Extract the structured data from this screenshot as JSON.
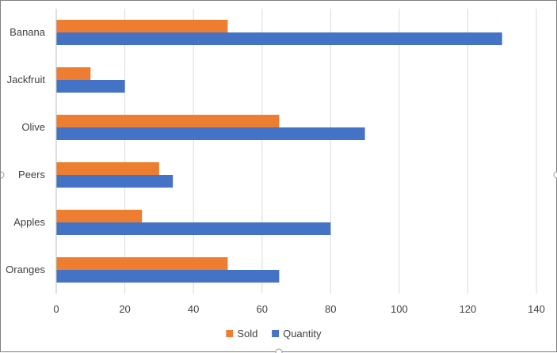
{
  "chart_data": {
    "type": "bar",
    "orientation": "horizontal",
    "title": "",
    "xlabel": "",
    "ylabel": "",
    "categories": [
      "Banana",
      "Jackfruit",
      "Olive",
      "Peers",
      "Apples",
      "Oranges"
    ],
    "series": [
      {
        "name": "Sold",
        "color": "#ED7D31",
        "values": [
          50,
          10,
          65,
          30,
          25,
          50
        ]
      },
      {
        "name": "Quantity",
        "color": "#4472C4",
        "values": [
          130,
          20,
          90,
          34,
          80,
          65
        ]
      }
    ],
    "xlim": [
      0,
      140
    ],
    "xticks": [
      0,
      20,
      40,
      60,
      80,
      100,
      120,
      140
    ],
    "grid": true,
    "legend": "bottom-center",
    "colors": {
      "grid": "#d9d9d9",
      "axis": "#bfbfbf",
      "text": "#404040"
    }
  }
}
